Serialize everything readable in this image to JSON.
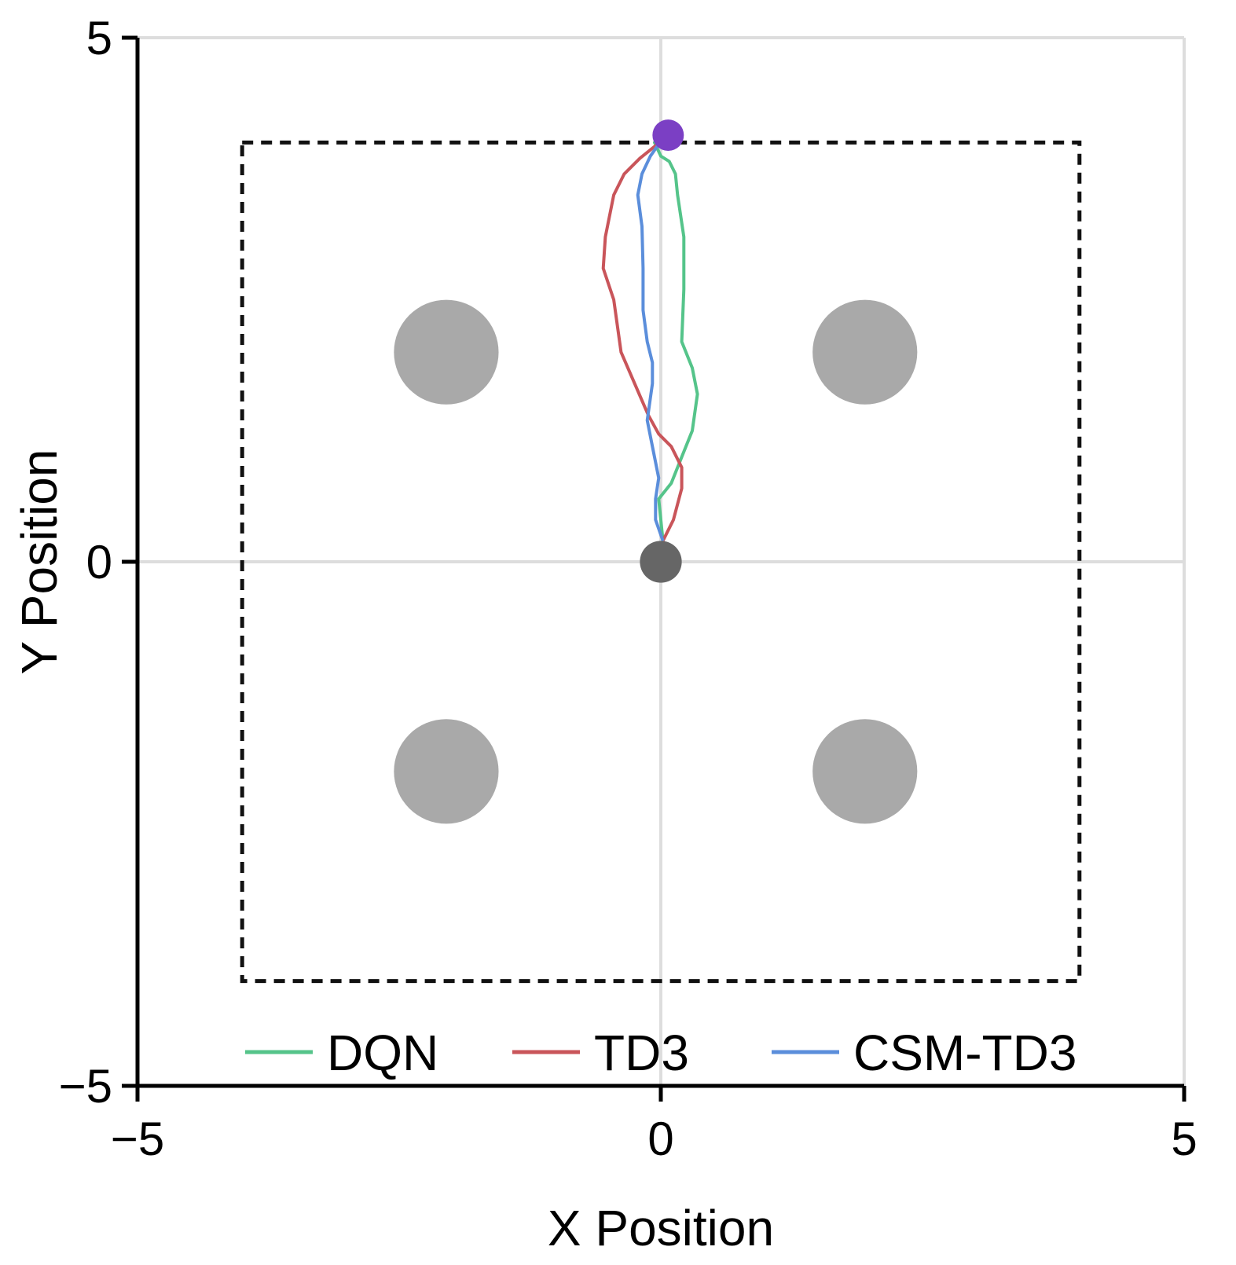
{
  "chart_data": {
    "type": "line",
    "title": "",
    "xlabel": "X Position",
    "ylabel": "Y Position",
    "xlim": [
      -5,
      5
    ],
    "ylim": [
      -5,
      5
    ],
    "xticks": [
      -5,
      0,
      5
    ],
    "yticks": [
      -5,
      0,
      5
    ],
    "xtick_labels": [
      "−5",
      "0",
      "5"
    ],
    "ytick_labels": [
      "−5",
      "0",
      "5"
    ],
    "grid": true,
    "legend_position": "bottom",
    "colors": {
      "DQN": "#55c48a",
      "TD3": "#c9555a",
      "CSM-TD3": "#5b8edb",
      "goal": "#7b3fc4",
      "start": "#666666",
      "obstacle": "#a9a9a9",
      "boundary": "#111111",
      "grid": "#dddddd"
    },
    "boundary": {
      "x": [
        -4,
        4
      ],
      "y": [
        -4,
        4
      ],
      "style": "dashed"
    },
    "obstacles": [
      {
        "x": -2.05,
        "y": 2,
        "r": 0.5
      },
      {
        "x": 1.95,
        "y": 2,
        "r": 0.5
      },
      {
        "x": -2.05,
        "y": -2,
        "r": 0.5
      },
      {
        "x": 1.95,
        "y": -2,
        "r": 0.5
      }
    ],
    "start": {
      "x": 0,
      "y": 0,
      "r": 0.2
    },
    "goal": {
      "x": 0.07,
      "y": 4.07,
      "r": 0.15
    },
    "series": [
      {
        "name": "DQN",
        "points": [
          [
            0.02,
            0.2
          ],
          [
            -0.02,
            0.6
          ],
          [
            0.1,
            0.75
          ],
          [
            0.2,
            1.0
          ],
          [
            0.3,
            1.25
          ],
          [
            0.35,
            1.6
          ],
          [
            0.3,
            1.85
          ],
          [
            0.2,
            2.1
          ],
          [
            0.22,
            2.6
          ],
          [
            0.22,
            3.1
          ],
          [
            0.16,
            3.5
          ],
          [
            0.14,
            3.7
          ],
          [
            0.08,
            3.82
          ],
          [
            0.0,
            3.87
          ],
          [
            -0.06,
            4.0
          ],
          [
            0.06,
            4.07
          ]
        ]
      },
      {
        "name": "TD3",
        "points": [
          [
            0.02,
            0.2
          ],
          [
            0.12,
            0.4
          ],
          [
            0.2,
            0.7
          ],
          [
            0.2,
            0.9
          ],
          [
            0.1,
            1.1
          ],
          [
            -0.02,
            1.22
          ],
          [
            -0.12,
            1.4
          ],
          [
            -0.25,
            1.7
          ],
          [
            -0.38,
            2.0
          ],
          [
            -0.45,
            2.5
          ],
          [
            -0.55,
            2.8
          ],
          [
            -0.53,
            3.1
          ],
          [
            -0.45,
            3.5
          ],
          [
            -0.35,
            3.7
          ],
          [
            -0.2,
            3.85
          ],
          [
            -0.05,
            3.97
          ],
          [
            0.06,
            4.07
          ]
        ]
      },
      {
        "name": "CSM-TD3",
        "points": [
          [
            0.02,
            0.2
          ],
          [
            -0.05,
            0.4
          ],
          [
            -0.05,
            0.6
          ],
          [
            -0.02,
            0.8
          ],
          [
            -0.08,
            1.1
          ],
          [
            -0.13,
            1.35
          ],
          [
            -0.08,
            1.7
          ],
          [
            -0.08,
            1.9
          ],
          [
            -0.13,
            2.1
          ],
          [
            -0.17,
            2.4
          ],
          [
            -0.17,
            2.8
          ],
          [
            -0.18,
            3.2
          ],
          [
            -0.22,
            3.5
          ],
          [
            -0.18,
            3.7
          ],
          [
            -0.1,
            3.87
          ],
          [
            -0.03,
            3.97
          ],
          [
            0.06,
            4.07
          ]
        ]
      }
    ]
  }
}
